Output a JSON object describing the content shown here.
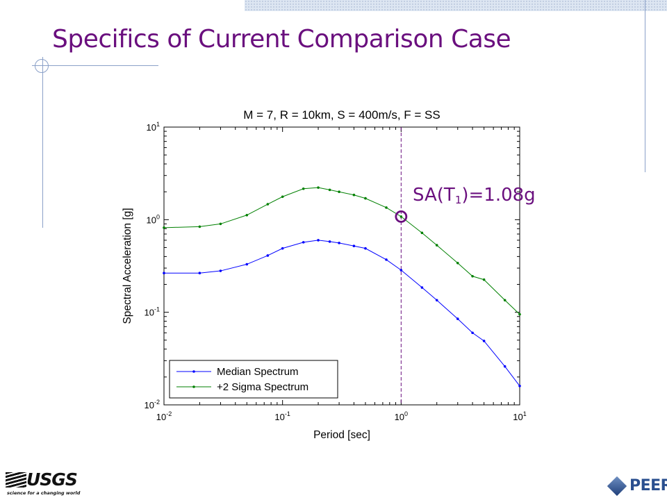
{
  "slide": {
    "title": "Specifics of Current Comparison Case",
    "annotation": {
      "main": "SA(T",
      "sub": "1",
      "rest": ")=1.08g"
    }
  },
  "logos": {
    "usgs": {
      "word": "USGS",
      "tagline": "science for a changing world"
    },
    "peer": {
      "word": "PEER"
    }
  },
  "colors": {
    "title": "#6a0f7e",
    "median": "#0000ff",
    "sigma": "#008000",
    "marker_line": "#6a0f7e"
  },
  "chart_data": {
    "type": "line",
    "title": "M = 7, R = 10km, S = 400m/s, F = SS",
    "xlabel": "Period [sec]",
    "ylabel": "Spectral Acceleration  [g]",
    "xscale": "log",
    "yscale": "log",
    "xlim": [
      0.01,
      10
    ],
    "ylim": [
      0.01,
      10
    ],
    "xticks": [
      {
        "value": 0.01,
        "base": "10",
        "exp": "-2"
      },
      {
        "value": 0.1,
        "base": "10",
        "exp": "-1"
      },
      {
        "value": 1,
        "base": "10",
        "exp": "0"
      },
      {
        "value": 10,
        "base": "10",
        "exp": "1"
      }
    ],
    "yticks": [
      {
        "value": 0.01,
        "base": "10",
        "exp": "-2"
      },
      {
        "value": 0.1,
        "base": "10",
        "exp": "-1"
      },
      {
        "value": 1,
        "base": "10",
        "exp": "0"
      },
      {
        "value": 10,
        "base": "10",
        "exp": "1"
      }
    ],
    "legend_position": "bottom-left",
    "vertical_marker": {
      "x": 1,
      "style": "dashed"
    },
    "highlight_point": {
      "x": 1,
      "y": 1.08
    },
    "series": [
      {
        "name": "Median Spectrum",
        "x": [
          0.01,
          0.02,
          0.03,
          0.05,
          0.075,
          0.1,
          0.15,
          0.2,
          0.25,
          0.3,
          0.4,
          0.5,
          0.75,
          1,
          1.5,
          2,
          3,
          4,
          5,
          7.5,
          10
        ],
        "y": [
          0.265,
          0.265,
          0.28,
          0.33,
          0.41,
          0.49,
          0.57,
          0.6,
          0.58,
          0.56,
          0.52,
          0.49,
          0.37,
          0.285,
          0.185,
          0.135,
          0.085,
          0.06,
          0.049,
          0.026,
          0.016
        ]
      },
      {
        "name": "+2 Sigma Spectrum",
        "x": [
          0.01,
          0.02,
          0.03,
          0.05,
          0.075,
          0.1,
          0.15,
          0.2,
          0.25,
          0.3,
          0.4,
          0.5,
          0.75,
          1,
          1.5,
          2,
          3,
          4,
          5,
          7.5,
          10
        ],
        "y": [
          0.82,
          0.84,
          0.9,
          1.12,
          1.47,
          1.77,
          2.16,
          2.22,
          2.1,
          2.0,
          1.85,
          1.7,
          1.35,
          1.08,
          0.72,
          0.53,
          0.34,
          0.245,
          0.225,
          0.135,
          0.095
        ]
      }
    ]
  }
}
